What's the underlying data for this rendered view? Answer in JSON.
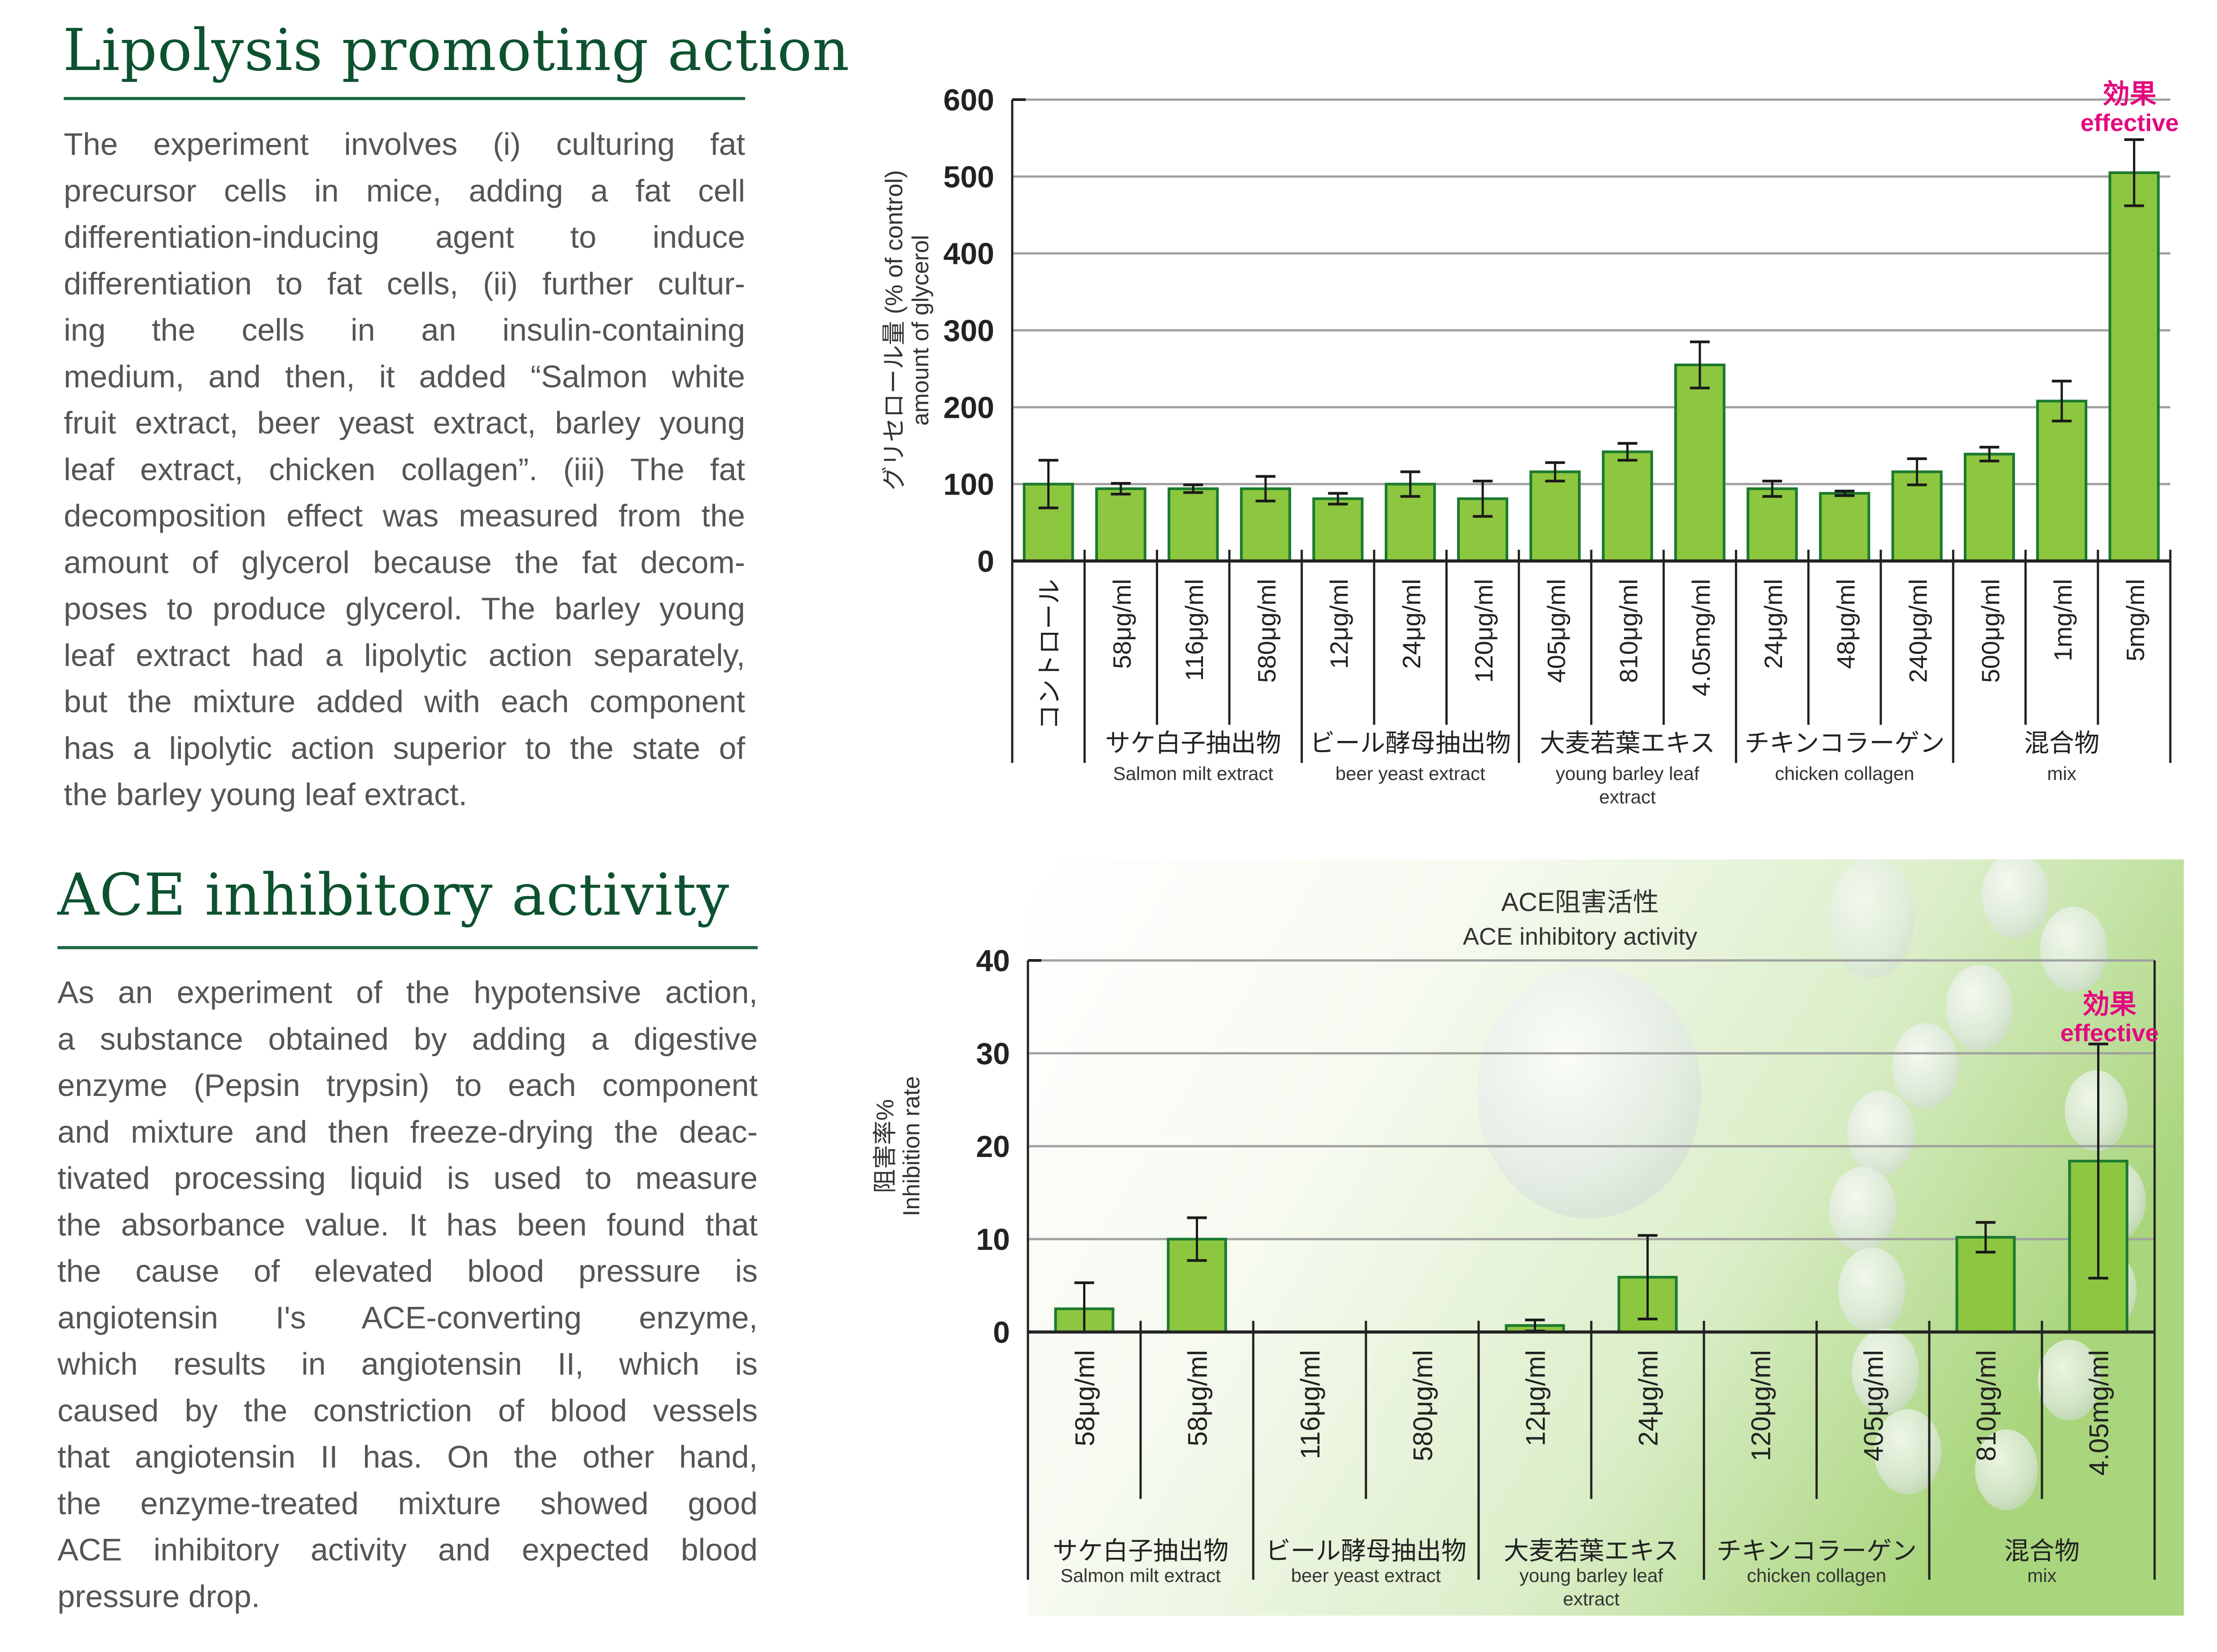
{
  "sections": {
    "lipolysis": {
      "title": "Lipolysis promoting action",
      "lines": [
        "The experiment involves (i) culturing fat",
        "precursor cells in mice, adding a fat cell",
        "differentiation-inducing agent to induce",
        "differentiation to fat cells, (ii) further cultur-",
        "ing the cells in an insulin-containing",
        "medium, and then, it added “Salmon white",
        "fruit extract, beer yeast extract, barley young",
        "leaf extract, chicken collagen”. (iii) The fat",
        "decomposition effect was measured from the",
        "amount of glycerol because the fat decom-",
        "poses to produce glycerol. The barley young",
        "leaf extract had a lipolytic action separately,",
        "but the mixture added with each component",
        "has a lipolytic action superior to the state of",
        "the barley young leaf extract."
      ]
    },
    "ace": {
      "title": "ACE inhibitory activity",
      "lines": [
        "As an experiment of the hypotensive action,",
        "a substance obtained by adding a digestive",
        "enzyme (Pepsin trypsin) to each component",
        "and mixture and then freeze-drying the deac-",
        "tivated processing liquid is used to measure",
        "the absorbance value. It has been found that",
        "the cause of elevated blood pressure is",
        "angiotensin I's ACE-converting enzyme,",
        "which results in angiotensin II, which is",
        "caused by the constriction of blood vessels",
        "that angiotensin II has. On the other hand,",
        "the enzyme-treated mixture showed good",
        "ACE inhibitory activity and expected blood",
        "pressure drop."
      ]
    }
  },
  "colors": {
    "heading": "#0d5230",
    "bar_fill": "#8dc63f",
    "bar_stroke": "#1b7a2e",
    "effective": "#e4097f",
    "grid": "#a0a0a0"
  },
  "chart_data": [
    {
      "type": "bar",
      "title": "",
      "ylabel_jp": "グリセロール量 (% of control)",
      "ylabel_en": "amount of glycerol",
      "ylim": [
        0,
        600
      ],
      "yticks": [
        0,
        100,
        200,
        300,
        400,
        500,
        600
      ],
      "grid": true,
      "categories": [
        "コントロール",
        "58μg/ml",
        "116μg/ml",
        "580μg/ml",
        "12μg/ml",
        "24μg/ml",
        "120μg/ml",
        "405μg/ml",
        "810μg/ml",
        "4.05mg/ml",
        "24μg/ml",
        "48μg/ml",
        "240μg/ml",
        "500μg/ml",
        "1mg/ml",
        "5mg/ml"
      ],
      "values": [
        100,
        94,
        94,
        94,
        81,
        100,
        81,
        116,
        142,
        255,
        94,
        88,
        116,
        139,
        208,
        505
      ],
      "error": [
        31,
        7,
        5,
        16,
        7,
        16,
        23,
        12,
        11,
        30,
        10,
        3,
        17,
        9,
        26,
        43
      ],
      "groups": [
        {
          "jp": "",
          "en": "",
          "span": [
            0,
            0
          ]
        },
        {
          "jp": "サケ白子抽出物",
          "en": "Salmon milt extract",
          "span": [
            1,
            3
          ]
        },
        {
          "jp": "ビール酵母抽出物",
          "en": "beer yeast extract",
          "span": [
            4,
            6
          ]
        },
        {
          "jp": "大麦若葉エキス",
          "en": "young barley leaf extract",
          "en_lines": [
            "young barley leaf",
            "extract"
          ],
          "span": [
            7,
            9
          ]
        },
        {
          "jp": "チキンコラーゲン",
          "en": "chicken collagen",
          "span": [
            10,
            12
          ]
        },
        {
          "jp": "混合物",
          "en": "mix",
          "span": [
            13,
            15
          ]
        }
      ],
      "annotation": {
        "jp": "効果",
        "en": "effective",
        "category_index": 15
      }
    },
    {
      "type": "bar",
      "title": "ACE阻害活性",
      "subtitle": "ACE inhibitory activity",
      "ylabel_jp": "阻害率%",
      "ylabel_en": "Inhibition rate",
      "ylim": [
        0,
        40
      ],
      "yticks": [
        0,
        10,
        20,
        30,
        40
      ],
      "grid": true,
      "categories": [
        "58μg/ml",
        "58μg/ml",
        "116μg/ml",
        "580μg/ml",
        "12μg/ml",
        "24μg/ml",
        "120μg/ml",
        "405μg/ml",
        "810μg/ml",
        "4.05mg/ml"
      ],
      "values": [
        2.5,
        10.0,
        0,
        0,
        0.7,
        5.9,
        0,
        0,
        10.2,
        18.4
      ],
      "error": [
        2.8,
        2.3,
        0,
        0,
        0.6,
        4.5,
        0,
        0,
        1.6,
        12.6
      ],
      "groups": [
        {
          "jp": "サケ白子抽出物",
          "en": "Salmon milt extract",
          "span": [
            0,
            1
          ]
        },
        {
          "jp": "ビール酵母抽出物",
          "en": "beer yeast extract",
          "span": [
            2,
            3
          ]
        },
        {
          "jp": "大麦若葉エキス",
          "en": "young barley leaf extract",
          "en_lines": [
            "young barley leaf",
            "extract"
          ],
          "span": [
            4,
            5
          ]
        },
        {
          "jp": "チキンコラーゲン",
          "en": "chicken collagen",
          "span": [
            6,
            7
          ]
        },
        {
          "jp": "混合物",
          "en": "mix",
          "span": [
            8,
            9
          ]
        }
      ],
      "annotation": {
        "jp": "効果",
        "en": "effective",
        "category_index": 9
      }
    }
  ]
}
